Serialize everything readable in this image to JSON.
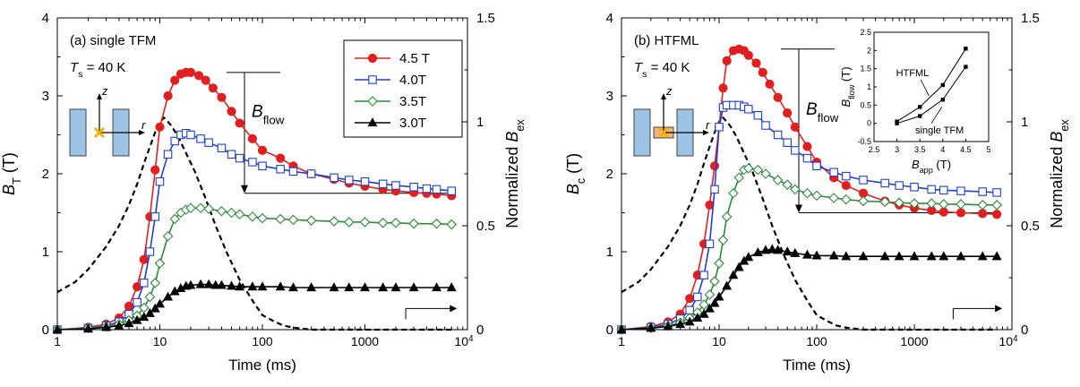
{
  "colors": {
    "s45": "#e02020",
    "s40": "#1f3fd0",
    "s35": "#2f8a3a",
    "s30": "#000000",
    "pulse": "#000000",
    "coil": "#9dc3e6",
    "bulk_b": "#f4b183",
    "marker": "#f0b400"
  },
  "xticks": [
    "1",
    "10",
    "100",
    "1000",
    "10"
  ],
  "xticks_exp": "4",
  "chart_data": [
    {
      "type": "line",
      "panel_label": "(a) single TFM",
      "temp_label": {
        "symbol": "T",
        "sub": "s",
        "rest": " = 40 K"
      },
      "xlabel": "Time (ms)",
      "ylabel": {
        "symbol": "B",
        "sub": "T",
        "unit": " (T)"
      },
      "y2label": {
        "prefix": "Normalized ",
        "symbol": "B",
        "sub": "ex"
      },
      "xscale": "log",
      "xlim": [
        1,
        10000
      ],
      "ylim": [
        0,
        4
      ],
      "y2lim": [
        0,
        1.5
      ],
      "yticks": [
        "0",
        "1",
        "2",
        "3",
        "4"
      ],
      "y2ticks": [
        "0",
        "0.5",
        "1",
        "1.5"
      ],
      "axis_labels": {
        "z": "z",
        "r": "r"
      },
      "annotation": {
        "symbol": "B",
        "sub": "flow"
      },
      "legend": {
        "position": "top-right",
        "entries": [
          "4.5 T",
          "4.0T",
          "3.5T",
          "3.0T"
        ]
      },
      "series": [
        {
          "name": "4.5 T",
          "marker": "filled-circle",
          "x": [
            1,
            2,
            3,
            4,
            5,
            6,
            7,
            8,
            9,
            10,
            12,
            14,
            16,
            18,
            20,
            24,
            28,
            33,
            40,
            50,
            60,
            80,
            100,
            150,
            200,
            300,
            500,
            700,
            1000,
            1500,
            2000,
            3000,
            4000,
            5000,
            7000
          ],
          "y": [
            0.0,
            0.03,
            0.07,
            0.15,
            0.3,
            0.55,
            0.9,
            1.45,
            2.05,
            2.6,
            3.0,
            3.2,
            3.28,
            3.3,
            3.3,
            3.26,
            3.2,
            3.1,
            2.98,
            2.8,
            2.65,
            2.45,
            2.3,
            2.2,
            2.1,
            2.0,
            1.93,
            1.88,
            1.84,
            1.8,
            1.78,
            1.76,
            1.75,
            1.74,
            1.72
          ]
        },
        {
          "name": "4.0T",
          "marker": "open-square",
          "x": [
            1,
            2,
            3,
            4,
            5,
            6,
            7,
            8,
            9,
            10,
            12,
            14,
            16,
            18,
            20,
            25,
            30,
            40,
            50,
            60,
            80,
            100,
            150,
            200,
            300,
            500,
            700,
            1000,
            1500,
            2000,
            3000,
            4000,
            5000,
            7000
          ],
          "y": [
            0.0,
            0.02,
            0.05,
            0.1,
            0.2,
            0.35,
            0.6,
            1.0,
            1.45,
            1.9,
            2.25,
            2.42,
            2.5,
            2.52,
            2.5,
            2.45,
            2.4,
            2.33,
            2.25,
            2.2,
            2.15,
            2.1,
            2.06,
            2.03,
            2.0,
            1.95,
            1.92,
            1.9,
            1.87,
            1.85,
            1.83,
            1.81,
            1.8,
            1.78
          ]
        },
        {
          "name": "3.5T",
          "marker": "open-diamond",
          "x": [
            1,
            2,
            3,
            4,
            5,
            6,
            7,
            8,
            9,
            10,
            12,
            14,
            16,
            18,
            20,
            25,
            30,
            40,
            50,
            60,
            80,
            100,
            150,
            200,
            300,
            500,
            700,
            1000,
            1500,
            2000,
            3000,
            5000,
            7000
          ],
          "y": [
            0.0,
            0.02,
            0.04,
            0.07,
            0.12,
            0.18,
            0.28,
            0.42,
            0.6,
            0.85,
            1.2,
            1.42,
            1.5,
            1.54,
            1.56,
            1.56,
            1.55,
            1.52,
            1.5,
            1.48,
            1.45,
            1.43,
            1.42,
            1.41,
            1.4,
            1.39,
            1.38,
            1.38,
            1.37,
            1.37,
            1.36,
            1.36,
            1.35
          ]
        },
        {
          "name": "3.0T",
          "marker": "filled-triangle",
          "x": [
            1,
            2,
            3,
            4,
            5,
            6,
            7,
            8,
            9,
            10,
            12,
            14,
            16,
            18,
            20,
            25,
            30,
            35,
            40,
            50,
            60,
            80,
            100,
            150,
            200,
            300,
            500,
            700,
            1000,
            1500,
            2000,
            3000,
            5000,
            7000
          ],
          "y": [
            0.0,
            0.01,
            0.03,
            0.05,
            0.08,
            0.12,
            0.16,
            0.21,
            0.27,
            0.33,
            0.42,
            0.49,
            0.53,
            0.56,
            0.57,
            0.58,
            0.58,
            0.57,
            0.57,
            0.56,
            0.55,
            0.55,
            0.55,
            0.55,
            0.54,
            0.54,
            0.54,
            0.54,
            0.54,
            0.54,
            0.54,
            0.54,
            0.54,
            0.54
          ]
        }
      ],
      "pulse": {
        "axis": "y2",
        "style": "dashed",
        "x": [
          1,
          1.5,
          2,
          3,
          4,
          5,
          6,
          7,
          8,
          9,
          10,
          11,
          12,
          13,
          15,
          18,
          22,
          28,
          35,
          45,
          60,
          80,
          100,
          130,
          160,
          200,
          300,
          1000,
          7000
        ],
        "y": [
          0.18,
          0.23,
          0.29,
          0.4,
          0.5,
          0.6,
          0.7,
          0.8,
          0.88,
          0.95,
          1.0,
          1.02,
          1.0,
          0.98,
          0.93,
          0.85,
          0.76,
          0.63,
          0.5,
          0.37,
          0.24,
          0.14,
          0.07,
          0.04,
          0.02,
          0.01,
          0.0,
          0.0,
          0.0
        ]
      },
      "flow": {
        "xtop": 100,
        "ytop": 3.3,
        "ybottom": 1.75,
        "xend": 7000
      },
      "arrow": {
        "x0": 2500,
        "x1": 7000,
        "y2": 0.05
      }
    },
    {
      "type": "line",
      "panel_label": "(b) HTFML",
      "temp_label": {
        "symbol": "T",
        "sub": "s",
        "rest": " = 40 K"
      },
      "xlabel": "Time (ms)",
      "ylabel": {
        "symbol": "B",
        "sub": "c",
        "unit": " (T)"
      },
      "y2label": {
        "prefix": "Normalized ",
        "symbol": "B",
        "sub": "ex"
      },
      "xscale": "log",
      "xlim": [
        1,
        10000
      ],
      "ylim": [
        0,
        4
      ],
      "y2lim": [
        0,
        1.5
      ],
      "yticks": [
        "0",
        "1",
        "2",
        "3",
        "4"
      ],
      "y2ticks": [
        "0",
        "0.5",
        "1",
        "1.5"
      ],
      "axis_labels": {
        "z": "z",
        "r": "r"
      },
      "annotation": {
        "symbol": "B",
        "sub": "flow"
      },
      "series": [
        {
          "name": "4.5 T",
          "marker": "filled-circle",
          "x": [
            1,
            2,
            3,
            4,
            5,
            6,
            7,
            8,
            9,
            10,
            11,
            12,
            14,
            16,
            18,
            20,
            24,
            28,
            33,
            40,
            50,
            60,
            80,
            100,
            150,
            200,
            300,
            500,
            700,
            1000,
            1500,
            2000,
            3000,
            5000,
            7000
          ],
          "y": [
            0.0,
            0.04,
            0.1,
            0.2,
            0.4,
            0.7,
            1.1,
            1.6,
            2.1,
            2.6,
            3.1,
            3.45,
            3.58,
            3.6,
            3.58,
            3.52,
            3.42,
            3.3,
            3.15,
            2.98,
            2.78,
            2.6,
            2.35,
            2.15,
            1.95,
            1.85,
            1.75,
            1.65,
            1.6,
            1.56,
            1.53,
            1.51,
            1.5,
            1.49,
            1.48
          ]
        },
        {
          "name": "4.0T",
          "marker": "open-square",
          "x": [
            1,
            2,
            3,
            4,
            5,
            6,
            7,
            8,
            9,
            10,
            11,
            12,
            14,
            16,
            18,
            20,
            25,
            30,
            40,
            50,
            60,
            80,
            100,
            150,
            200,
            300,
            500,
            700,
            1000,
            1500,
            2000,
            3000,
            5000,
            7000
          ],
          "y": [
            0.0,
            0.03,
            0.07,
            0.14,
            0.25,
            0.42,
            0.7,
            1.1,
            1.8,
            2.6,
            2.85,
            2.88,
            2.88,
            2.88,
            2.86,
            2.83,
            2.75,
            2.62,
            2.5,
            2.4,
            2.3,
            2.2,
            2.1,
            2.02,
            1.97,
            1.92,
            1.88,
            1.85,
            1.83,
            1.8,
            1.79,
            1.78,
            1.77,
            1.76
          ]
        },
        {
          "name": "3.5T",
          "marker": "open-diamond",
          "x": [
            1,
            2,
            3,
            4,
            5,
            6,
            7,
            8,
            9,
            10,
            11,
            12,
            14,
            16,
            18,
            20,
            25,
            30,
            40,
            50,
            60,
            80,
            100,
            150,
            200,
            300,
            500,
            700,
            1000,
            1500,
            2000,
            3000,
            5000,
            7000
          ],
          "y": [
            0.0,
            0.02,
            0.05,
            0.09,
            0.15,
            0.22,
            0.32,
            0.45,
            0.62,
            0.85,
            1.15,
            1.45,
            1.75,
            1.95,
            2.05,
            2.07,
            2.05,
            2.0,
            1.92,
            1.86,
            1.8,
            1.75,
            1.72,
            1.69,
            1.67,
            1.65,
            1.64,
            1.63,
            1.62,
            1.62,
            1.61,
            1.61,
            1.6,
            1.6
          ]
        },
        {
          "name": "3.0T",
          "marker": "filled-triangle",
          "x": [
            1,
            2,
            3,
            4,
            5,
            6,
            7,
            8,
            9,
            10,
            12,
            14,
            16,
            18,
            20,
            25,
            30,
            35,
            40,
            50,
            60,
            80,
            100,
            150,
            200,
            300,
            500,
            700,
            1000,
            1500,
            2000,
            3000,
            5000,
            7000
          ],
          "y": [
            0.0,
            0.02,
            0.04,
            0.07,
            0.1,
            0.15,
            0.2,
            0.27,
            0.34,
            0.42,
            0.56,
            0.7,
            0.8,
            0.88,
            0.93,
            0.99,
            1.02,
            1.03,
            1.02,
            1.0,
            0.98,
            0.96,
            0.95,
            0.95,
            0.94,
            0.94,
            0.94,
            0.94,
            0.94,
            0.94,
            0.94,
            0.94,
            0.94,
            0.94
          ]
        }
      ],
      "pulse": {
        "axis": "y2",
        "style": "dashed",
        "x": [
          1,
          1.5,
          2,
          3,
          4,
          5,
          6,
          7,
          8,
          9,
          10,
          11,
          12,
          13,
          15,
          18,
          22,
          28,
          35,
          45,
          60,
          80,
          100,
          130,
          160,
          200,
          300,
          1000,
          7000
        ],
        "y": [
          0.18,
          0.23,
          0.29,
          0.4,
          0.5,
          0.6,
          0.7,
          0.8,
          0.88,
          0.95,
          1.0,
          1.02,
          1.0,
          0.98,
          0.93,
          0.85,
          0.76,
          0.63,
          0.5,
          0.37,
          0.24,
          0.14,
          0.07,
          0.04,
          0.02,
          0.01,
          0.0,
          0.0,
          0.0
        ]
      },
      "flow": {
        "xtop": 100,
        "ytop": 3.6,
        "ybottom": 1.5,
        "xend": 7000
      },
      "arrow": {
        "x0": 2500,
        "x1": 7000,
        "y2": 0.05
      },
      "inset": {
        "type": "line",
        "xlabel": {
          "symbol": "B",
          "sub": "app",
          "unit": " (T)"
        },
        "ylabel": {
          "symbol": "B",
          "sub": "flow",
          "unit": " (T)"
        },
        "xlim": [
          2.5,
          5
        ],
        "ylim": [
          -0.5,
          2.5
        ],
        "xticks": [
          "2.5",
          "3",
          "3.5",
          "4",
          "4.5",
          "5"
        ],
        "yticks": [
          "-0.5",
          "0",
          "0.5",
          "1",
          "1.5",
          "2",
          "2.5"
        ],
        "series": [
          {
            "name": "HTFML",
            "x": [
              3.0,
              3.5,
              4.0,
              4.5
            ],
            "y": [
              0.05,
              0.45,
              1.05,
              2.05
            ]
          },
          {
            "name": "single TFM",
            "x": [
              3.0,
              3.5,
              4.0,
              4.5
            ],
            "y": [
              0.0,
              0.2,
              0.65,
              1.55
            ]
          }
        ]
      }
    }
  ]
}
